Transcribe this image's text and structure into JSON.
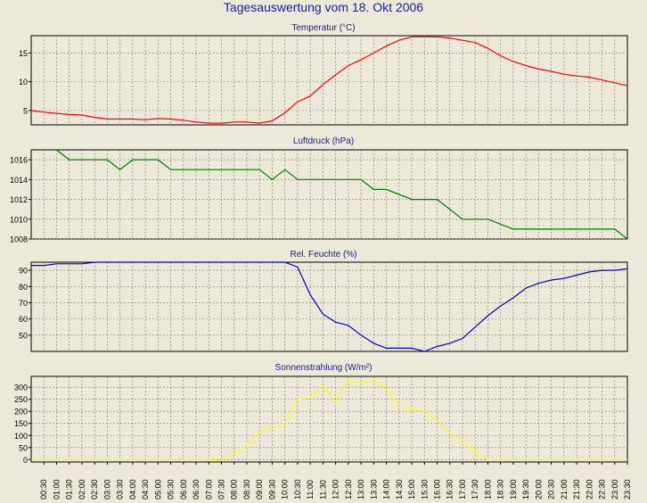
{
  "page": {
    "title": "Tagesauswertung vom 18. Okt 2006"
  },
  "time_labels": [
    "00:30",
    "01:00",
    "01:30",
    "02:00",
    "02:30",
    "03:00",
    "03:30",
    "04:00",
    "04:30",
    "05:00",
    "05:30",
    "06:00",
    "06:30",
    "07:00",
    "07:30",
    "08:00",
    "08:30",
    "09:00",
    "09:30",
    "10:00",
    "10:30",
    "11:00",
    "11:30",
    "12:00",
    "12:30",
    "13:00",
    "13:30",
    "14:00",
    "14:30",
    "15:00",
    "15:30",
    "16:00",
    "16:30",
    "17:00",
    "17:30",
    "18:00",
    "18:30",
    "19:00",
    "19:30",
    "20:00",
    "20:30",
    "21:00",
    "21:30",
    "22:00",
    "22:30",
    "23:00",
    "23:30"
  ],
  "chart_data": [
    {
      "type": "line",
      "title": "Temperatur (°C)",
      "color": "#ff0000",
      "ylim": [
        2.5,
        18
      ],
      "y_ticks": [
        5,
        10,
        15
      ],
      "y_tick_labels": [
        "5",
        "10",
        "15"
      ],
      "x": [
        0,
        0.5,
        1,
        1.5,
        2,
        2.5,
        3,
        3.5,
        4,
        4.5,
        5,
        5.5,
        6,
        6.5,
        7,
        7.5,
        8,
        8.5,
        9,
        9.5,
        10,
        10.5,
        11,
        11.5,
        12,
        12.5,
        13,
        13.5,
        14,
        14.5,
        15,
        15.5,
        16,
        16.5,
        17,
        17.5,
        18,
        18.5,
        19,
        19.5,
        20,
        20.5,
        21,
        21.5,
        22,
        22.5,
        23,
        23.5
      ],
      "series": [
        {
          "values": [
            5,
            4.7,
            4.5,
            4.3,
            4.2,
            3.8,
            3.5,
            3.5,
            3.5,
            3.4,
            3.6,
            3.5,
            3.3,
            3.0,
            2.8,
            2.8,
            3.0,
            3.0,
            2.8,
            3.2,
            4.6,
            6.5,
            7.5,
            9.5,
            11.2,
            12.8,
            13.8,
            15.0,
            16.2,
            17.2,
            17.8,
            17.8,
            17.8,
            17.6,
            17.2,
            16.8,
            15.8,
            14.5,
            13.5,
            12.8,
            12.2,
            11.8,
            11.3,
            11.0,
            10.8,
            10.3,
            9.8,
            9.3
          ]
        }
      ]
    },
    {
      "type": "line",
      "title": "Luftdruck (hPa)",
      "color": "#007a00",
      "ylim": [
        1008,
        1017
      ],
      "y_ticks": [
        1008,
        1010,
        1012,
        1014,
        1016
      ],
      "y_tick_labels": [
        "1008",
        "1010",
        "1012",
        "1014",
        "1016"
      ],
      "x": [
        1,
        1.5,
        3,
        3.5,
        4,
        5,
        5.5,
        9,
        9.5,
        10,
        10.5,
        13,
        13.5,
        14,
        15,
        16,
        17,
        18,
        19,
        23,
        23.5
      ],
      "series": [
        {
          "values": [
            1017,
            1016,
            1016,
            1015,
            1016,
            1016,
            1015,
            1015,
            1014,
            1015,
            1014,
            1014,
            1013,
            1013,
            1012,
            1012,
            1010,
            1010,
            1009,
            1009,
            1008
          ]
        }
      ]
    },
    {
      "type": "line",
      "title": "Rel. Feuchte (%)",
      "color": "#0000cc",
      "ylim": [
        40,
        95
      ],
      "y_ticks": [
        50,
        60,
        70,
        80,
        90
      ],
      "y_tick_labels": [
        "50",
        "60",
        "70",
        "80",
        "90"
      ],
      "x": [
        0,
        0.5,
        1,
        1.5,
        2,
        2.5,
        10,
        10.5,
        11,
        11.5,
        12,
        12.5,
        13,
        13.5,
        14,
        14.5,
        15,
        15.5,
        16,
        16.5,
        17,
        17.5,
        18,
        18.5,
        19,
        19.5,
        20,
        20.5,
        21,
        21.5,
        22,
        22.5,
        23,
        23.5
      ],
      "series": [
        {
          "values": [
            93,
            93,
            94,
            94,
            94,
            95,
            95,
            92,
            75,
            63,
            58,
            56,
            50,
            45,
            42,
            42,
            42,
            40,
            43,
            45,
            48,
            55,
            62,
            68,
            73,
            79,
            82,
            84,
            85,
            87,
            89,
            90,
            90,
            91
          ]
        }
      ]
    },
    {
      "type": "line",
      "title": "Sonnenstrahlung (W/m²)",
      "color": "#ffff00",
      "ylim": [
        -10,
        345
      ],
      "y_ticks": [
        0,
        50,
        100,
        150,
        200,
        250,
        300
      ],
      "y_tick_labels": [
        "0",
        "50",
        "100",
        "150",
        "200",
        "250",
        "300"
      ],
      "x": [
        0,
        1,
        2,
        3,
        4,
        5,
        6,
        6.5,
        7,
        7.5,
        8,
        8.5,
        9,
        9.5,
        10,
        10.5,
        11,
        11.5,
        12,
        12.5,
        13,
        13.5,
        14,
        14.5,
        15,
        15.5,
        16,
        16.5,
        17,
        17.5,
        18,
        18.5,
        19,
        20,
        21,
        22,
        23,
        23.5
      ],
      "series": [
        {
          "values": [
            0,
            0,
            0,
            0,
            0,
            0,
            0,
            0,
            0,
            5,
            25,
            60,
            115,
            130,
            150,
            250,
            255,
            305,
            240,
            330,
            315,
            330,
            290,
            215,
            210,
            200,
            160,
            110,
            80,
            30,
            0,
            0,
            0,
            0,
            0,
            0,
            0,
            0
          ]
        }
      ]
    }
  ]
}
